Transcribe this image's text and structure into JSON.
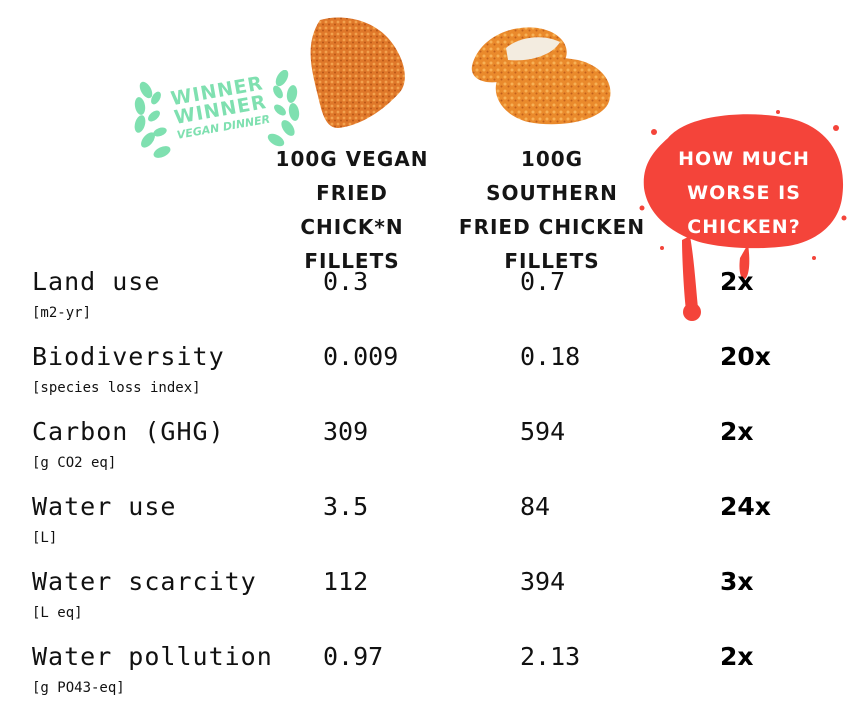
{
  "badge": {
    "line1": "WINNER",
    "line2": "WINNER",
    "line3": "VEGAN DINNER",
    "laurel_color": "#7fe0b0"
  },
  "columns": {
    "vegan_header": "100G VEGAN FRIED CHICK*N FILLETS",
    "chicken_header": "100G SOUTHERN FRIED CHICKEN FILLETS",
    "ratio_header": "HOW MUCH WORSE IS CHICKEN?"
  },
  "colors": {
    "splat_red": "#f4443a",
    "text": "#111111"
  },
  "rows": [
    {
      "name": "Land use",
      "unit": "[m2-yr]",
      "vegan": "0.3",
      "chicken": "0.7",
      "ratio": "2x"
    },
    {
      "name": "Biodiversity",
      "unit": "[species loss index]",
      "vegan": "0.009",
      "chicken": "0.18",
      "ratio": "20x"
    },
    {
      "name": "Carbon (GHG)",
      "unit": "[g CO2 eq]",
      "vegan": "309",
      "chicken": "594",
      "ratio": "2x"
    },
    {
      "name": "Water use",
      "unit": "[L]",
      "vegan": "3.5",
      "chicken": "84",
      "ratio": "24x"
    },
    {
      "name": "Water scarcity",
      "unit": "[L eq]",
      "vegan": "112",
      "chicken": "394",
      "ratio": "3x"
    },
    {
      "name": "Water pollution",
      "unit": "[g PO43-eq]",
      "vegan": "0.97",
      "chicken": "2.13",
      "ratio": "2x"
    }
  ]
}
